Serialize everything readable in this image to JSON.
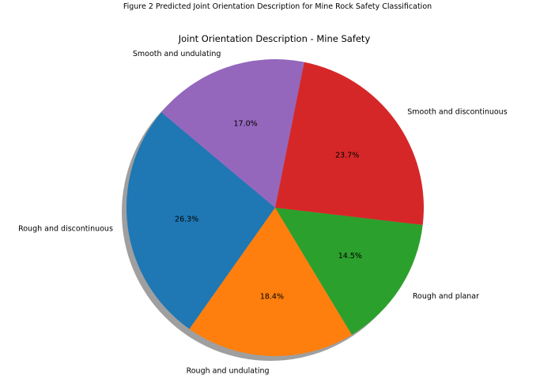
{
  "figure": {
    "suptitle": "Figure 2 Predicted Joint Orientation Description for Mine Rock Safety Classification"
  },
  "chart_data": {
    "type": "pie",
    "title": "Joint Orientation Description - Mine Safety",
    "startangle": 140,
    "shadow": true,
    "categories": [
      "Rough and discontinuous",
      "Rough and undulating",
      "Rough and planar",
      "Smooth and discontinuous",
      "Smooth and undulating"
    ],
    "values": [
      26.3,
      18.4,
      14.5,
      23.7,
      17.0
    ],
    "labels_pct": [
      "26.3%",
      "18.4%",
      "14.5%",
      "23.7%",
      "17.0%"
    ],
    "colors": [
      "#1f77b4",
      "#ff7f0e",
      "#2ca02c",
      "#d62728",
      "#9467bd"
    ]
  }
}
